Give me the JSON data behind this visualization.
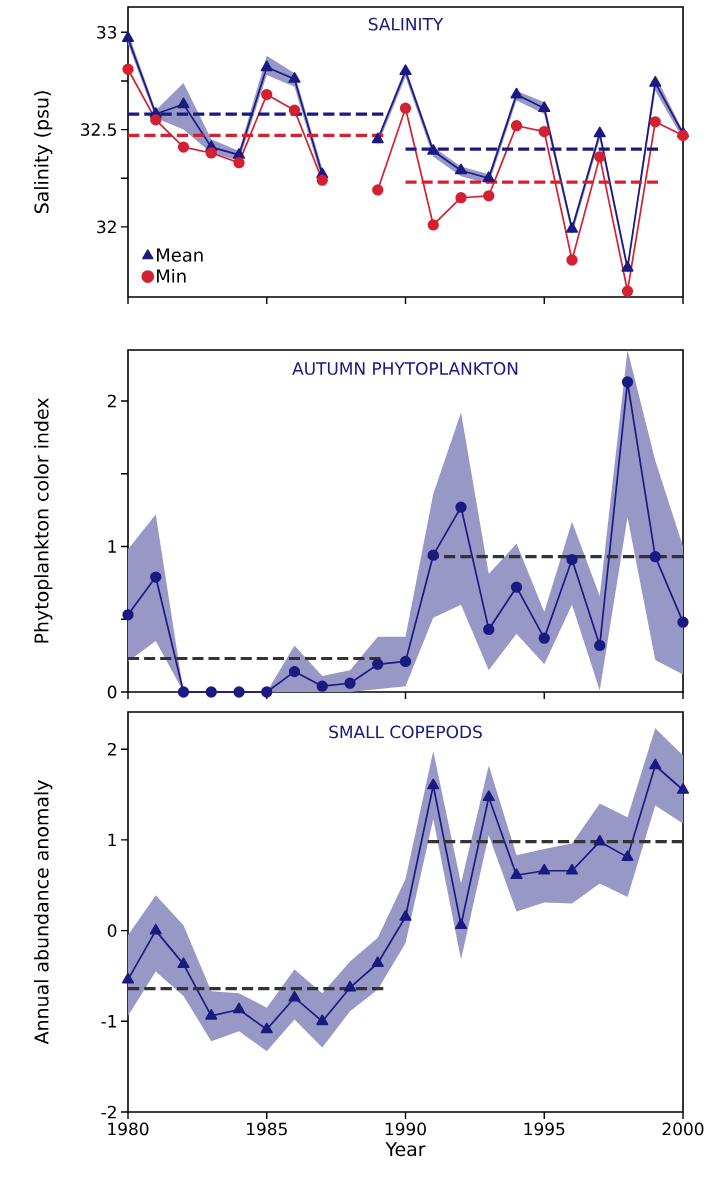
{
  "chart_data": [
    {
      "type": "line",
      "title": "SALINITY",
      "ylabel": "Salinity (psu)",
      "x": [
        1980,
        1981,
        1982,
        1983,
        1984,
        1985,
        1986,
        1987,
        1988,
        1989,
        1990,
        1991,
        1992,
        1993,
        1994,
        1995,
        1996,
        1997,
        1998,
        1999,
        2000
      ],
      "xlim": [
        1980,
        2000
      ],
      "xticks": [
        1980,
        1985,
        1990,
        1995,
        2000
      ],
      "ylim": [
        31.64,
        33.13
      ],
      "yticks": [
        32,
        {
          "value": 32.25,
          "label": null
        },
        32.5,
        {
          "value": 32.75,
          "label": null
        },
        33
      ],
      "tick_labels": "y",
      "legend": "bottom left",
      "series": [
        {
          "name": "Mean",
          "marker": "triangle",
          "color": "#1a1a80",
          "values": [
            32.97,
            32.58,
            32.63,
            32.41,
            32.37,
            32.82,
            32.76,
            32.27,
            null,
            32.45,
            32.8,
            32.39,
            32.29,
            32.25,
            32.68,
            32.61,
            31.99,
            32.48,
            31.79,
            32.74,
            32.48
          ],
          "lower": [
            32.94,
            32.56,
            32.5,
            32.38,
            32.34,
            32.78,
            32.72,
            32.24,
            null,
            32.42,
            32.77,
            32.36,
            32.26,
            32.22,
            32.65,
            32.58,
            31.96,
            32.45,
            31.76,
            32.7,
            32.45
          ],
          "upper": [
            33.0,
            32.6,
            32.74,
            32.45,
            32.39,
            32.88,
            32.79,
            32.3,
            null,
            32.46,
            32.82,
            32.41,
            32.31,
            32.27,
            32.7,
            32.64,
            32.01,
            32.5,
            31.8,
            32.78,
            32.49
          ]
        },
        {
          "name": "Min",
          "marker": "circle",
          "color": "#d42030",
          "values": [
            32.81,
            32.55,
            32.41,
            32.38,
            32.33,
            32.68,
            32.6,
            32.24,
            null,
            32.19,
            32.61,
            32.01,
            32.15,
            32.16,
            32.52,
            32.49,
            31.83,
            32.36,
            31.67,
            32.54,
            32.47
          ]
        },
        {
          "marker": "none",
          "line_style": "dashed",
          "color": "#1a1a80",
          "x": [
            1980,
            1989.2
          ],
          "values": [
            32.58,
            32.58
          ]
        },
        {
          "marker": "none",
          "line_style": "dashed",
          "color": "#1a1a80",
          "x": [
            1990,
            1999.1
          ],
          "values": [
            32.4,
            32.4
          ]
        },
        {
          "marker": "none",
          "line_style": "dashed",
          "color": "#d42030",
          "x": [
            1980,
            1989.2
          ],
          "values": [
            32.47,
            32.47
          ]
        },
        {
          "marker": "none",
          "line_style": "dashed",
          "color": "#d42030",
          "x": [
            1990,
            1999.1
          ],
          "values": [
            32.23,
            32.23
          ]
        }
      ]
    },
    {
      "type": "line",
      "title": "AUTUMN PHYTOPLANKTON",
      "ylabel": "Phytoplankton color index",
      "x": [
        1980,
        1981,
        1982,
        1983,
        1984,
        1985,
        1986,
        1987,
        1988,
        1989,
        1990,
        1991,
        1992,
        1993,
        1994,
        1995,
        1996,
        1997,
        1998,
        1999,
        2000
      ],
      "xlim": [
        1980,
        2000
      ],
      "xticks": [
        1980,
        1985,
        1990,
        1995,
        2000
      ],
      "ylim": [
        0,
        2.35
      ],
      "yticks": [
        0,
        {
          "value": 0.5,
          "label": null
        },
        1,
        {
          "value": 1.5,
          "label": null
        },
        2
      ],
      "tick_labels": "y",
      "series": [
        {
          "marker": "circle",
          "color": "#1a1a80",
          "values": [
            0.53,
            0.79,
            0,
            0,
            0,
            0,
            0.14,
            0.04,
            0.06,
            0.19,
            0.21,
            0.94,
            1.27,
            0.43,
            0.72,
            0.37,
            0.91,
            0.32,
            2.13,
            0.93,
            0.48
          ],
          "lower": [
            0.21,
            0.35,
            0,
            0,
            0,
            0,
            0,
            0,
            0,
            0.02,
            0.04,
            0.51,
            0.6,
            0.15,
            0.4,
            0.19,
            0.6,
            0.01,
            1.2,
            0.22,
            0.12
          ],
          "upper": [
            0.98,
            1.22,
            0,
            0,
            0,
            0,
            0.32,
            0.11,
            0.15,
            0.38,
            0.38,
            1.36,
            1.92,
            0.81,
            1.02,
            0.55,
            1.17,
            0.66,
            2.35,
            1.59,
            1.0
          ]
        },
        {
          "marker": "none",
          "line_style": "dashed",
          "color": "#333333",
          "x": [
            1980,
            1989.1
          ],
          "values": [
            0.23,
            0.23
          ]
        },
        {
          "marker": "none",
          "line_style": "dashed",
          "color": "#333333",
          "x": [
            1990.8,
            2000
          ],
          "values": [
            0.93,
            0.93
          ]
        }
      ]
    },
    {
      "type": "line",
      "title": "SMALL COPEPODS",
      "ylabel": "Annual abundance anomaly",
      "xlabel": "Year",
      "x": [
        1980,
        1981,
        1982,
        1983,
        1984,
        1985,
        1986,
        1987,
        1988,
        1989,
        1990,
        1991,
        1992,
        1993,
        1994,
        1995,
        1996,
        1997,
        1998,
        1999,
        2000
      ],
      "xlim": [
        1980,
        2000
      ],
      "xticks": [
        1980,
        1985,
        1990,
        1995,
        2000
      ],
      "ylim": [
        -2,
        2.41
      ],
      "yticks": [
        -2,
        -1,
        0,
        1,
        2
      ],
      "series": [
        {
          "marker": "triangle",
          "color": "#1a1a80",
          "values": [
            -0.54,
            0,
            -0.37,
            -0.94,
            -0.87,
            -1.09,
            -0.74,
            -1.0,
            -0.63,
            -0.36,
            0.15,
            1.6,
            0.06,
            1.47,
            0.61,
            0.66,
            0.66,
            0.98,
            0.81,
            1.82,
            1.55
          ],
          "lower": [
            -0.94,
            -0.45,
            -0.72,
            -1.22,
            -1.11,
            -1.33,
            -0.98,
            -1.29,
            -0.89,
            -0.65,
            -0.14,
            1.23,
            -0.32,
            1.05,
            0.21,
            0.31,
            0.3,
            0.52,
            0.37,
            1.38,
            1.18
          ],
          "upper": [
            -0.05,
            0.39,
            0.06,
            -0.67,
            -0.69,
            -0.85,
            -0.43,
            -0.69,
            -0.34,
            -0.08,
            0.57,
            1.98,
            0.52,
            1.82,
            0.83,
            0.9,
            0.96,
            1.4,
            1.25,
            2.23,
            1.93
          ]
        },
        {
          "marker": "none",
          "line_style": "dashed",
          "color": "#333333",
          "x": [
            1980,
            1989.2
          ],
          "values": [
            -0.64,
            -0.64
          ]
        },
        {
          "marker": "none",
          "line_style": "dashed",
          "color": "#333333",
          "x": [
            1990.8,
            2000
          ],
          "values": [
            0.98,
            0.98
          ]
        }
      ]
    }
  ]
}
